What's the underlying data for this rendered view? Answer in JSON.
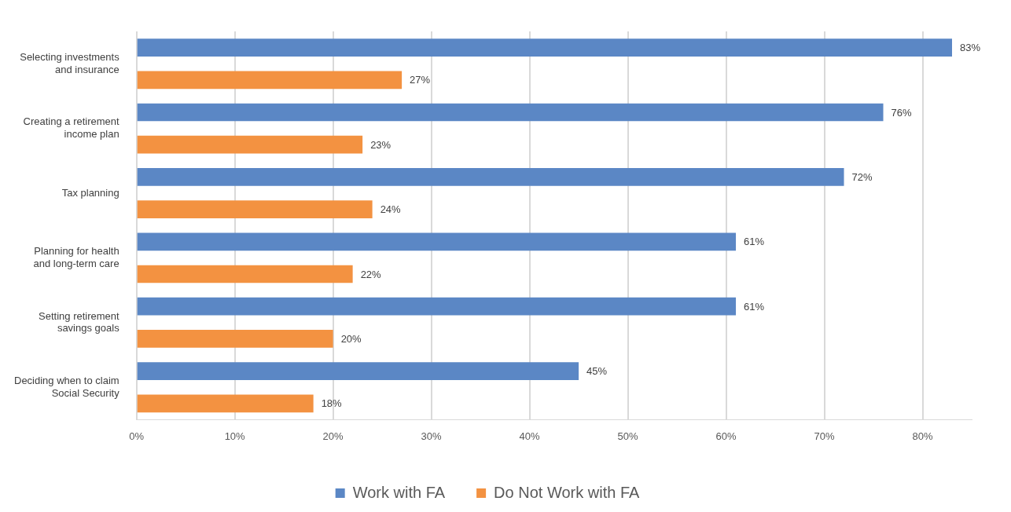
{
  "chart_data": {
    "type": "bar",
    "orientation": "horizontal",
    "categories": [
      "Selecting investments and insurance",
      "Creating a retirement income plan",
      "Tax planning",
      "Planning for health and long-term care",
      "Setting retirement savings goals",
      "Deciding when to claim Social Security"
    ],
    "series": [
      {
        "name": "Work with FA",
        "color": "#5b87c5",
        "values": [
          83,
          76,
          72,
          61,
          61,
          45
        ],
        "value_labels": [
          "83%",
          "76%",
          "72%",
          "61%",
          "61%",
          "45%"
        ]
      },
      {
        "name": "Do Not Work with FA",
        "color": "#f39241",
        "values": [
          27,
          23,
          24,
          22,
          20,
          18
        ],
        "value_labels": [
          "27%",
          "23%",
          "24%",
          "22%",
          "20%",
          "18%"
        ]
      }
    ],
    "xlim": [
      0,
      85
    ],
    "xticks": [
      {
        "value": 0,
        "label": "0%"
      },
      {
        "value": 10,
        "label": "10%"
      },
      {
        "value": 20,
        "label": "20%"
      },
      {
        "value": 30,
        "label": "30%"
      },
      {
        "value": 40,
        "label": "40%"
      },
      {
        "value": 50,
        "label": "50%"
      },
      {
        "value": 60,
        "label": "60%"
      },
      {
        "value": 70,
        "label": "70%"
      },
      {
        "value": 80,
        "label": "80%"
      }
    ],
    "grid": "x",
    "legend": "bottom"
  }
}
